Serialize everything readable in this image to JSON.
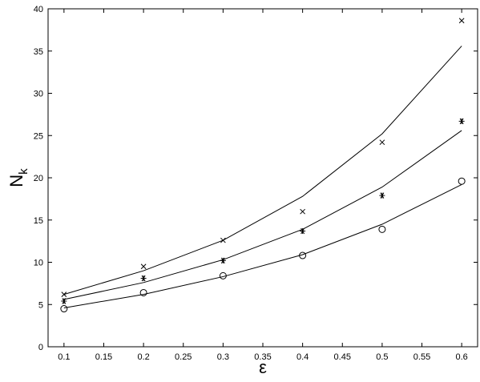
{
  "chart_data": {
    "type": "line",
    "x": [
      0.1,
      0.2,
      0.3,
      0.4,
      0.5,
      0.6
    ],
    "series": [
      {
        "color": "#000000",
        "marker": "none",
        "values": [
          6.2,
          9.0,
          12.6,
          17.8,
          25.2,
          35.6
        ]
      },
      {
        "color": "#000000",
        "marker": "none",
        "values": [
          5.6,
          7.6,
          10.3,
          13.9,
          18.9,
          25.6
        ]
      },
      {
        "color": "#000000",
        "marker": "none",
        "values": [
          4.6,
          6.2,
          8.3,
          10.9,
          14.5,
          19.2
        ]
      },
      {
        "color": "#000000",
        "marker": "x",
        "values": [
          6.2,
          9.5,
          12.6,
          16.0,
          24.2,
          38.6
        ]
      },
      {
        "color": "#000000",
        "marker": "star",
        "values": [
          5.4,
          8.1,
          10.2,
          13.7,
          17.9,
          26.7
        ]
      },
      {
        "color": "#000000",
        "marker": "circle",
        "values": [
          4.5,
          6.4,
          8.4,
          10.8,
          13.9,
          19.6
        ]
      }
    ],
    "x_label": "ε",
    "y_label": "N",
    "y_label_subscript": "k",
    "xlim": [
      0.08,
      0.62
    ],
    "ylim": [
      0,
      40
    ],
    "xticks": [
      0.1,
      0.15,
      0.2,
      0.25,
      0.3,
      0.35,
      0.4,
      0.45,
      0.5,
      0.55,
      0.6
    ],
    "yticks": [
      0,
      5,
      10,
      15,
      20,
      25,
      30,
      35,
      40
    ],
    "grid": false
  }
}
